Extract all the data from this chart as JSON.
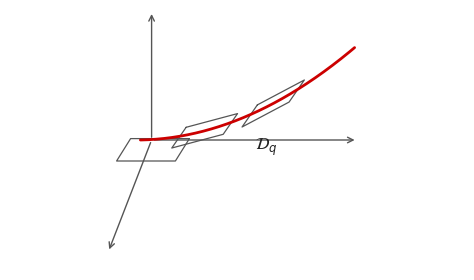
{
  "bg_color": "#ffffff",
  "line_color": "#555555",
  "red_color": "#cc0000",
  "label": "$\\mathcal{D}_q$",
  "label_fontsize": 12,
  "fig_width": 4.74,
  "fig_height": 2.8,
  "dpi": 100
}
